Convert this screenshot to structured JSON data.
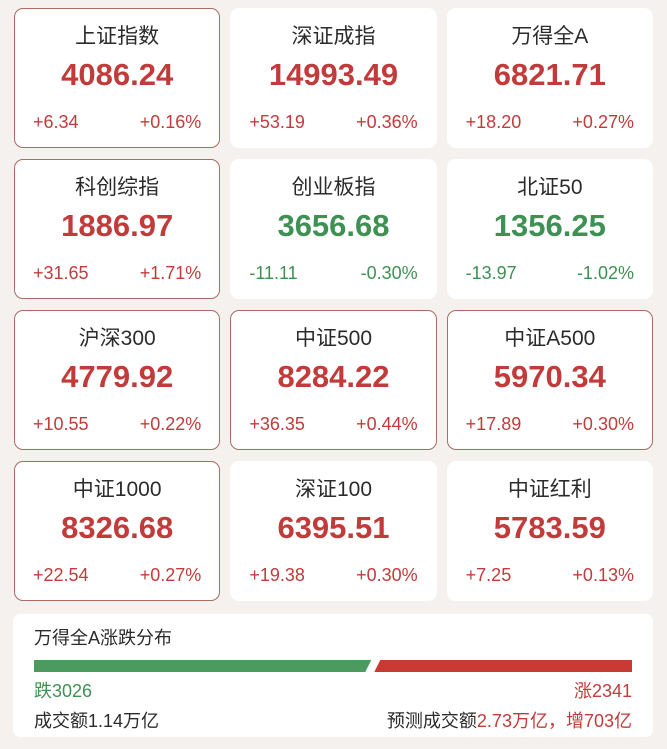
{
  "board": {
    "indices": [
      {
        "name": "上证指数",
        "value": "4086.24",
        "change": "+6.34",
        "pct": "+0.16%",
        "trend": "up",
        "bordered": true
      },
      {
        "name": "深证成指",
        "value": "14993.49",
        "change": "+53.19",
        "pct": "+0.36%",
        "trend": "up",
        "bordered": false
      },
      {
        "name": "万得全A",
        "value": "6821.71",
        "change": "+18.20",
        "pct": "+0.27%",
        "trend": "up",
        "bordered": false
      },
      {
        "name": "科创综指",
        "value": "1886.97",
        "change": "+31.65",
        "pct": "+1.71%",
        "trend": "up",
        "bordered": true
      },
      {
        "name": "创业板指",
        "value": "3656.68",
        "change": "-11.11",
        "pct": "-0.30%",
        "trend": "down",
        "bordered": false
      },
      {
        "name": "北证50",
        "value": "1356.25",
        "change": "-13.97",
        "pct": "-1.02%",
        "trend": "down",
        "bordered": false
      },
      {
        "name": "沪深300",
        "value": "4779.92",
        "change": "+10.55",
        "pct": "+0.22%",
        "trend": "up",
        "bordered": true
      },
      {
        "name": "中证500",
        "value": "8284.22",
        "change": "+36.35",
        "pct": "+0.44%",
        "trend": "up",
        "bordered": true
      },
      {
        "name": "中证A500",
        "value": "5970.34",
        "change": "+17.89",
        "pct": "+0.30%",
        "trend": "up",
        "bordered": true
      },
      {
        "name": "中证1000",
        "value": "8326.68",
        "change": "+22.54",
        "pct": "+0.27%",
        "trend": "up",
        "bordered": true
      },
      {
        "name": "深证100",
        "value": "6395.51",
        "change": "+19.38",
        "pct": "+0.30%",
        "trend": "up",
        "bordered": false
      },
      {
        "name": "中证红利",
        "value": "5783.59",
        "change": "+7.25",
        "pct": "+0.13%",
        "trend": "up",
        "bordered": false
      }
    ]
  },
  "distribution": {
    "title": "万得全A涨跌分布",
    "down_label": "跌3026",
    "up_label": "涨2341",
    "down_count": 3026,
    "up_count": 2341,
    "down_fraction_pct": 56.4,
    "turnover": "成交额1.14万亿",
    "forecast_prefix": "预测成交额",
    "forecast_highlight": "2.73万亿，增703亿"
  },
  "colors": {
    "up_red": "#c23b3b",
    "down_green": "#3e9153",
    "bar_red": "#c93a32",
    "bar_green": "#4b9b5f",
    "card_border": "#a96b62",
    "background": "#f4f1ee",
    "text_dark": "#2b2b2b"
  }
}
